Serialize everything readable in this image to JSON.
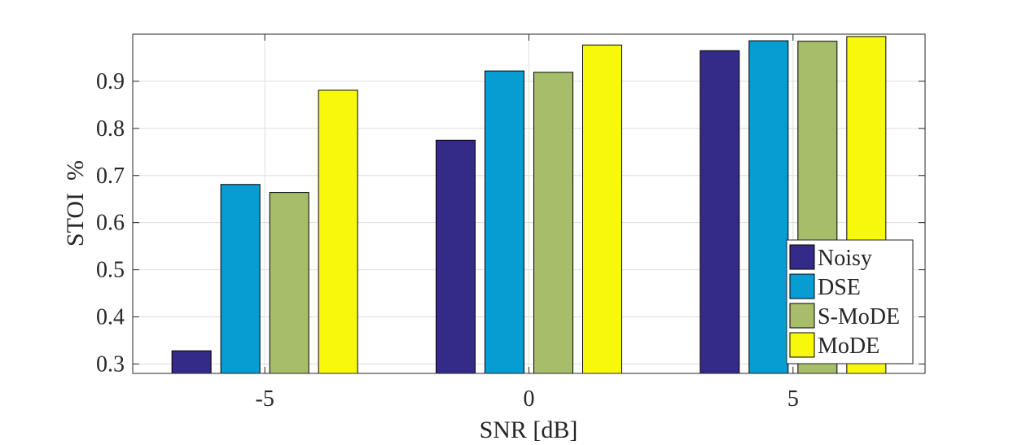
{
  "chart_data": {
    "type": "bar",
    "title": "",
    "xlabel": "SNR [dB]",
    "ylabel": "STOI  %",
    "categories": [
      "-5",
      "0",
      "5"
    ],
    "ylim": [
      0.28,
      1.0
    ],
    "yticks": [
      "0.3",
      "0.4",
      "0.5",
      "0.6",
      "0.7",
      "0.8",
      "0.9"
    ],
    "ytick_values": [
      0.3,
      0.4,
      0.5,
      0.6,
      0.7,
      0.8,
      0.9
    ],
    "grid": true,
    "legend_position": "bottom-right",
    "series": [
      {
        "name": "Noisy",
        "color": "#342a87",
        "values": [
          0.328,
          0.775,
          0.965
        ]
      },
      {
        "name": "DSE",
        "color": "#079dd3",
        "values": [
          0.681,
          0.922,
          0.986
        ]
      },
      {
        "name": "S-MoDE",
        "color": "#a6bd6a",
        "values": [
          0.664,
          0.919,
          0.985
        ]
      },
      {
        "name": "MoDE",
        "color": "#f8f80d",
        "values": [
          0.881,
          0.977,
          0.995
        ]
      }
    ]
  }
}
